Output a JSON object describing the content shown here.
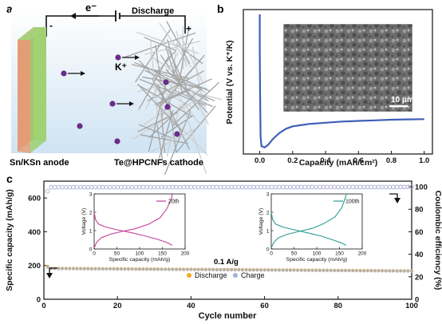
{
  "chart_data": [
    {
      "panel": "a",
      "type": "diagram",
      "labels": {
        "electron": "e⁻",
        "minus": "-",
        "plus": "+",
        "discharge": "Discharge",
        "ion": "K⁺",
        "anode": "Sn/KSn anode",
        "cathode": "Te@HPCNFs cathode"
      },
      "colors": {
        "background": "#d9ebf6",
        "anode_front": "#8fcf6a",
        "anode_back": "#e08a66",
        "ion": "#6a2c8a",
        "fiber": "#9a9a9a"
      }
    },
    {
      "panel": "b",
      "type": "line",
      "xlabel": "Capacity (mAh/cm²)",
      "ylabel": "Potential (V vs. K⁺/K)",
      "xlim": [
        -0.1,
        1.05
      ],
      "ylim": [
        -0.5,
        1.9
      ],
      "xticks": [
        "0.0",
        "0.2",
        "0.4",
        "0.6",
        "0.8",
        "1.0"
      ],
      "series": [
        {
          "color": "#3f5fb8",
          "points": [
            [
              0.0,
              1.82
            ],
            [
              0.0,
              1.2
            ],
            [
              0.002,
              0.5
            ],
            [
              0.005,
              -0.2
            ],
            [
              0.01,
              -0.37
            ],
            [
              0.03,
              -0.39
            ],
            [
              0.05,
              -0.35
            ],
            [
              0.08,
              -0.25
            ],
            [
              0.12,
              -0.15
            ],
            [
              0.16,
              -0.08
            ],
            [
              0.2,
              -0.04
            ],
            [
              0.3,
              0.0
            ],
            [
              0.4,
              0.02
            ],
            [
              0.5,
              0.04
            ],
            [
              0.6,
              0.05
            ],
            [
              0.7,
              0.06
            ],
            [
              0.8,
              0.07
            ],
            [
              0.9,
              0.075
            ],
            [
              1.0,
              0.08
            ]
          ]
        }
      ],
      "inset": {
        "type": "SEM image",
        "scale_bar": "10 μm"
      }
    },
    {
      "panel": "c",
      "type": "scatter",
      "xlabel": "Cycle number",
      "ylabel": "Specific capacity (mAh/g)",
      "ylabel_right": "Coulombic efficiency (%)",
      "xlim": [
        0,
        100
      ],
      "ylim": [
        0,
        700
      ],
      "ylim_right": [
        0,
        105
      ],
      "xticks": [
        "0",
        "20",
        "40",
        "60",
        "80",
        "100"
      ],
      "yticks": [
        "0",
        "200",
        "400",
        "600"
      ],
      "yticks_right": [
        "0",
        "20",
        "40",
        "60",
        "80",
        "100"
      ],
      "rate": "0.1 A/g",
      "legend": [
        "Discharge",
        "Charge"
      ],
      "series": [
        {
          "name": "Discharge",
          "color": "#f5a623",
          "axis": "left",
          "first": 195,
          "start": 183,
          "end": 168
        },
        {
          "name": "Charge",
          "color": "#9fb4d6",
          "axis": "left",
          "first": 190,
          "start": 182,
          "end": 167
        },
        {
          "name": "Coulombic efficiency",
          "color": "#a8a8d8",
          "axis": "right",
          "first": 96,
          "start": 99.5,
          "end": 99.8
        }
      ],
      "insets": [
        {
          "label": "20th",
          "color": "#c2409a",
          "xlabel": "Specific capacity (mAh/g)",
          "ylabel": "Voltage (V)",
          "xlim": [
            0,
            200
          ],
          "ylim": [
            0,
            3
          ],
          "xticks": [
            "0",
            "50",
            "100",
            "150",
            "200"
          ],
          "yticks": [
            "0",
            "1",
            "2",
            "3"
          ],
          "discharge": [
            [
              0,
              2.0
            ],
            [
              3,
              1.6
            ],
            [
              10,
              1.35
            ],
            [
              25,
              1.2
            ],
            [
              50,
              1.05
            ],
            [
              80,
              0.9
            ],
            [
              110,
              0.72
            ],
            [
              140,
              0.52
            ],
            [
              160,
              0.35
            ],
            [
              172,
              0.2
            ]
          ],
          "charge": [
            [
              0,
              0.05
            ],
            [
              5,
              0.35
            ],
            [
              15,
              0.6
            ],
            [
              35,
              0.8
            ],
            [
              60,
              0.95
            ],
            [
              90,
              1.1
            ],
            [
              120,
              1.35
            ],
            [
              145,
              1.7
            ],
            [
              160,
              2.2
            ],
            [
              170,
              2.75
            ],
            [
              172,
              3.0
            ]
          ]
        },
        {
          "label": "100th",
          "color": "#2a9d8f",
          "xlabel": "Specific capacity (mAh/g)",
          "ylabel": "Voltage (V)",
          "xlim": [
            0,
            200
          ],
          "ylim": [
            0,
            3
          ],
          "xticks": [
            "0",
            "50",
            "100",
            "150",
            "200"
          ],
          "yticks": [
            "0",
            "1",
            "2",
            "3"
          ],
          "discharge": [
            [
              0,
              2.0
            ],
            [
              3,
              1.6
            ],
            [
              10,
              1.35
            ],
            [
              25,
              1.2
            ],
            [
              50,
              1.05
            ],
            [
              80,
              0.88
            ],
            [
              110,
              0.7
            ],
            [
              135,
              0.5
            ],
            [
              155,
              0.32
            ],
            [
              165,
              0.2
            ]
          ],
          "charge": [
            [
              0,
              0.05
            ],
            [
              5,
              0.35
            ],
            [
              15,
              0.6
            ],
            [
              35,
              0.8
            ],
            [
              60,
              0.95
            ],
            [
              90,
              1.12
            ],
            [
              115,
              1.38
            ],
            [
              140,
              1.75
            ],
            [
              155,
              2.25
            ],
            [
              163,
              2.8
            ],
            [
              165,
              3.0
            ]
          ]
        }
      ]
    }
  ]
}
